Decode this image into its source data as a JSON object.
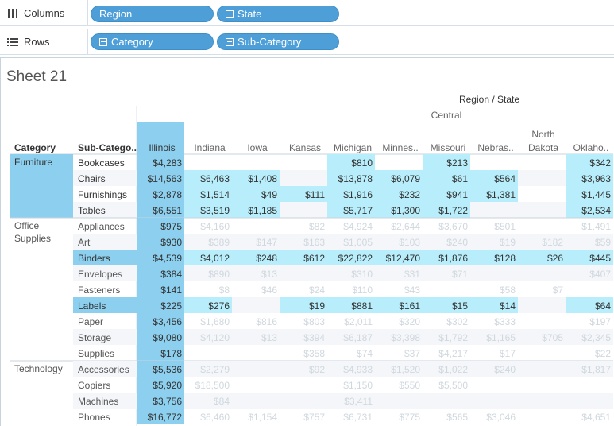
{
  "shelves": {
    "columns": {
      "label": "Columns",
      "icon": "columns-icon",
      "pills": [
        {
          "label": "Region",
          "expand": "none"
        },
        {
          "label": "State",
          "expand": "plus"
        }
      ]
    },
    "rows": {
      "label": "Rows",
      "icon": "rows-icon",
      "pills": [
        {
          "label": "Category",
          "expand": "minus"
        },
        {
          "label": "Sub-Category",
          "expand": "plus"
        }
      ]
    }
  },
  "sheet": {
    "title": "Sheet 21"
  },
  "crosstab": {
    "column_header_title": "Region / State",
    "region": "Central",
    "row_headers": [
      "Category",
      "Sub-Catego.."
    ],
    "states": [
      "Illinois",
      "Indiana",
      "Iowa",
      "Kansas",
      "Michigan",
      "Minnes..",
      "Missouri",
      "Nebras..",
      "North Dakota",
      "Oklaho.."
    ],
    "selected_state": "Illinois",
    "colors": {
      "highlight": "#b8eefb",
      "highlight_strong": "#8ccfee",
      "header_highlight": "#8ccfee",
      "normal_text": "#333333",
      "dim_text": "#d0d8de",
      "band": "#f4f6f9"
    },
    "categories": [
      {
        "name": "Furniture",
        "highlighted": true,
        "rows": [
          {
            "sub": "Bookcases",
            "vals": [
              "$4,283",
              "",
              "",
              "",
              "$810",
              "",
              "$213",
              "",
              "",
              "$342"
            ]
          },
          {
            "sub": "Chairs",
            "vals": [
              "$14,563",
              "$6,463",
              "$1,408",
              "",
              "$13,878",
              "$6,079",
              "$61",
              "$564",
              "",
              "$3,963"
            ]
          },
          {
            "sub": "Furnishings",
            "vals": [
              "$2,878",
              "$1,514",
              "$49",
              "$111",
              "$1,916",
              "$232",
              "$941",
              "$1,381",
              "",
              "$1,445"
            ]
          },
          {
            "sub": "Tables",
            "vals": [
              "$6,551",
              "$3,519",
              "$1,185",
              "",
              "$5,717",
              "$1,300",
              "$1,722",
              "",
              "",
              "$2,534"
            ]
          }
        ]
      },
      {
        "name": "Office Supplies",
        "highlighted": false,
        "rows": [
          {
            "sub": "Appliances",
            "vals": [
              "$975",
              "$4,160",
              "",
              "$82",
              "$4,924",
              "$2,644",
              "$3,670",
              "$501",
              "",
              "$1,491"
            ]
          },
          {
            "sub": "Art",
            "vals": [
              "$930",
              "$389",
              "$147",
              "$163",
              "$1,005",
              "$103",
              "$240",
              "$19",
              "$182",
              "$59"
            ]
          },
          {
            "sub": "Binders",
            "highlighted": true,
            "vals": [
              "$4,539",
              "$4,012",
              "$248",
              "$612",
              "$22,822",
              "$12,470",
              "$1,876",
              "$128",
              "$26",
              "$445"
            ]
          },
          {
            "sub": "Envelopes",
            "vals": [
              "$384",
              "$890",
              "$13",
              "",
              "$310",
              "$31",
              "$71",
              "",
              "",
              "$407"
            ]
          },
          {
            "sub": "Fasteners",
            "vals": [
              "$141",
              "$8",
              "$46",
              "$24",
              "$110",
              "$43",
              "",
              "$58",
              "$7",
              ""
            ]
          },
          {
            "sub": "Labels",
            "highlighted": true,
            "vals": [
              "$225",
              "$276",
              "",
              "$19",
              "$881",
              "$161",
              "$15",
              "$14",
              "",
              "$64"
            ]
          },
          {
            "sub": "Paper",
            "vals": [
              "$3,456",
              "$1,680",
              "$816",
              "$803",
              "$2,011",
              "$320",
              "$302",
              "$333",
              "",
              "$197"
            ]
          },
          {
            "sub": "Storage",
            "vals": [
              "$9,080",
              "$4,120",
              "$13",
              "$394",
              "$6,187",
              "$3,398",
              "$1,792",
              "$1,165",
              "$705",
              "$2,345"
            ]
          },
          {
            "sub": "Supplies",
            "vals": [
              "$178",
              "",
              "",
              "$358",
              "$74",
              "$37",
              "$4,217",
              "$17",
              "",
              "$22"
            ]
          }
        ]
      },
      {
        "name": "Technology",
        "highlighted": false,
        "rows": [
          {
            "sub": "Accessories",
            "vals": [
              "$5,536",
              "$2,279",
              "",
              "$92",
              "$4,933",
              "$1,520",
              "$1,022",
              "$240",
              "",
              "$1,817"
            ]
          },
          {
            "sub": "Copiers",
            "vals": [
              "$5,920",
              "$18,500",
              "",
              "",
              "$1,150",
              "$550",
              "$5,500",
              "",
              "",
              ""
            ]
          },
          {
            "sub": "Machines",
            "vals": [
              "$3,756",
              "$84",
              "",
              "",
              "$3,411",
              "",
              "",
              "",
              "",
              ""
            ]
          },
          {
            "sub": "Phones",
            "vals": [
              "$16,772",
              "$6,460",
              "$1,154",
              "$757",
              "$6,731",
              "$775",
              "$565",
              "$3,046",
              "",
              "$4,651"
            ]
          }
        ]
      }
    ]
  }
}
